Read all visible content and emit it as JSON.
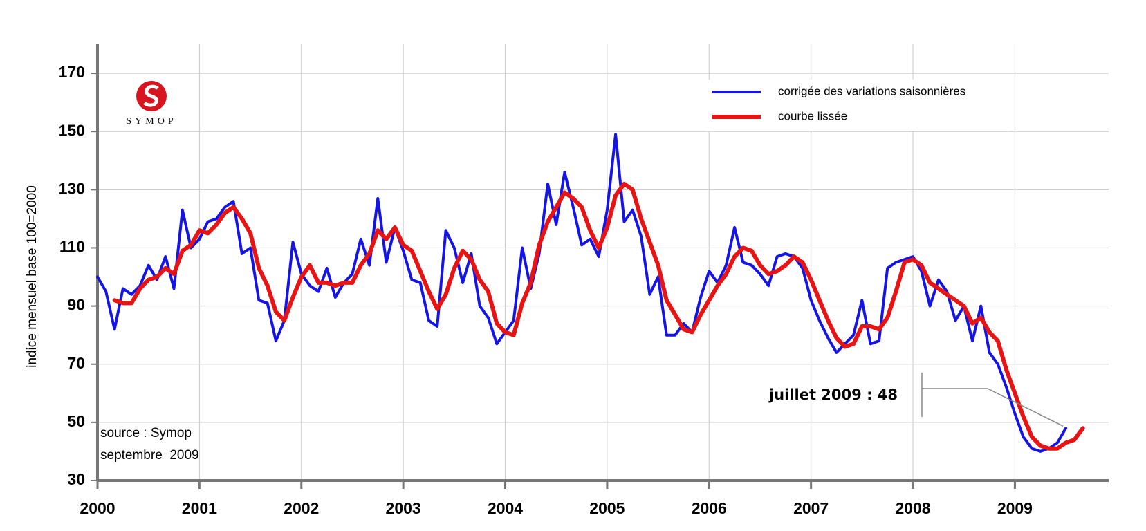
{
  "chart_data": {
    "type": "line",
    "ylabel": "indice mensuel base 100=2000",
    "logo_text": "SYMOP",
    "source": [
      "source : Symop",
      "septembre  2009"
    ],
    "annotation": {
      "text": "juillet 2009 : 48"
    },
    "legend": "upper right",
    "grid": true,
    "xlim": [
      2000,
      2009.92
    ],
    "xticks": [
      2000,
      2001,
      2002,
      2003,
      2004,
      2005,
      2006,
      2007,
      2008,
      2009
    ],
    "ylim": [
      30,
      180
    ],
    "yticks": [
      30,
      50,
      70,
      90,
      110,
      130,
      150,
      170
    ],
    "x": [
      2000,
      2000.083,
      2000.167,
      2000.25,
      2000.333,
      2000.417,
      2000.5,
      2000.583,
      2000.667,
      2000.75,
      2000.833,
      2000.917,
      2001,
      2001.083,
      2001.167,
      2001.25,
      2001.333,
      2001.417,
      2001.5,
      2001.583,
      2001.667,
      2001.75,
      2001.833,
      2001.917,
      2002,
      2002.083,
      2002.167,
      2002.25,
      2002.333,
      2002.417,
      2002.5,
      2002.583,
      2002.667,
      2002.75,
      2002.833,
      2002.917,
      2003,
      2003.083,
      2003.167,
      2003.25,
      2003.333,
      2003.417,
      2003.5,
      2003.583,
      2003.667,
      2003.75,
      2003.833,
      2003.917,
      2004,
      2004.083,
      2004.167,
      2004.25,
      2004.333,
      2004.417,
      2004.5,
      2004.583,
      2004.667,
      2004.75,
      2004.833,
      2004.917,
      2005,
      2005.083,
      2005.167,
      2005.25,
      2005.333,
      2005.417,
      2005.5,
      2005.583,
      2005.667,
      2005.75,
      2005.833,
      2005.917,
      2006,
      2006.083,
      2006.167,
      2006.25,
      2006.333,
      2006.417,
      2006.5,
      2006.583,
      2006.667,
      2006.75,
      2006.833,
      2006.917,
      2007,
      2007.083,
      2007.167,
      2007.25,
      2007.333,
      2007.417,
      2007.5,
      2007.583,
      2007.667,
      2007.75,
      2007.833,
      2007.917,
      2008,
      2008.083,
      2008.167,
      2008.25,
      2008.333,
      2008.417,
      2008.5,
      2008.583,
      2008.667,
      2008.75,
      2008.833,
      2008.917,
      2009,
      2009.083,
      2009.167,
      2009.25,
      2009.333,
      2009.417,
      2009.5,
      2009.583,
      2009.667
    ],
    "series": [
      {
        "name": "corrigée des variations saisonnières",
        "color": "#1414e6",
        "width": 4,
        "values": [
          100,
          95,
          82,
          96,
          94,
          97,
          104,
          99,
          107,
          96,
          123,
          110,
          113,
          119,
          120,
          124,
          126,
          108,
          110,
          92,
          91,
          78,
          85,
          112,
          101,
          97,
          95,
          103,
          93,
          98,
          101,
          113,
          104,
          127,
          105,
          117,
          109,
          99,
          98,
          85,
          83,
          116,
          110,
          98,
          108,
          90,
          86,
          77,
          81,
          85,
          110,
          96,
          108,
          132,
          118,
          136,
          124,
          111,
          113,
          107,
          123,
          149,
          119,
          123,
          114,
          94,
          100,
          80,
          80,
          84,
          81,
          93,
          102,
          98,
          104,
          117,
          105,
          104,
          101,
          97,
          107,
          108,
          107,
          103,
          92,
          85,
          79,
          74,
          77,
          80,
          92,
          77,
          78,
          103,
          105,
          106,
          107,
          102,
          90,
          99,
          95,
          85,
          90,
          78,
          90,
          74,
          70,
          62,
          53,
          45,
          41,
          40,
          41,
          43,
          48,
          null,
          null
        ]
      },
      {
        "name": "courbe lissée",
        "color": "#e81414",
        "width": 6,
        "values": [
          null,
          null,
          92,
          91,
          91,
          96,
          99,
          100,
          103,
          101,
          109,
          111,
          116,
          115,
          118,
          122,
          124,
          120,
          115,
          103,
          97,
          88,
          85,
          93,
          100,
          104,
          98,
          98,
          97,
          98,
          98,
          104,
          108,
          116,
          113,
          117,
          111,
          109,
          102,
          95,
          89,
          94,
          103,
          109,
          106,
          99,
          95,
          84,
          81,
          80,
          91,
          98,
          111,
          119,
          124,
          129,
          127,
          124,
          116,
          110,
          117,
          128,
          132,
          130,
          120,
          112,
          104,
          92,
          87,
          82,
          81,
          87,
          92,
          97,
          101,
          107,
          110,
          109,
          104,
          101,
          102,
          104,
          107,
          105,
          99,
          92,
          85,
          79,
          76,
          77,
          83,
          83,
          82,
          86,
          95,
          105,
          106,
          104,
          98,
          96,
          94,
          92,
          90,
          84,
          86,
          81,
          78,
          68,
          60,
          52,
          45,
          42,
          41,
          41,
          43,
          44,
          48
        ]
      }
    ]
  }
}
